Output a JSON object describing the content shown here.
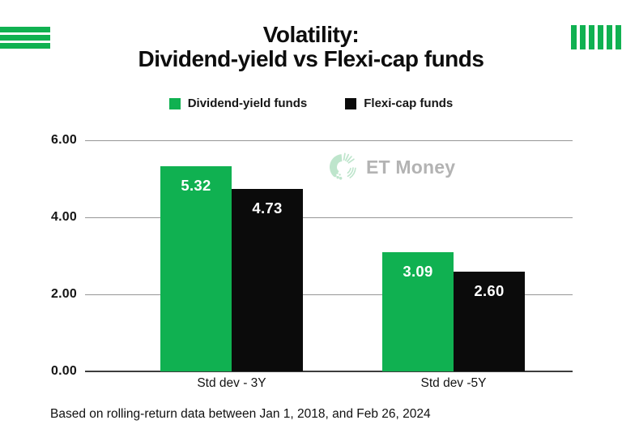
{
  "header": {
    "title_line1": "Volatility:",
    "title_line2": "Dividend-yield vs Flexi-cap funds"
  },
  "legend": {
    "items": [
      {
        "label": "Dividend-yield funds",
        "color": "#10B151"
      },
      {
        "label": "Flexi-cap funds",
        "color": "#0B0B0B"
      }
    ]
  },
  "chart_data": {
    "type": "bar",
    "title": "Volatility: Dividend-yield vs Flexi-cap funds",
    "categories": [
      "Std dev - 3Y",
      "Std dev -5Y"
    ],
    "series": [
      {
        "name": "Dividend-yield funds",
        "color": "#10B151",
        "values": [
          5.32,
          3.09
        ],
        "value_labels": [
          "5.32",
          "3.09"
        ]
      },
      {
        "name": "Flexi-cap funds",
        "color": "#0B0B0B",
        "values": [
          4.73,
          2.6
        ],
        "value_labels": [
          "4.73",
          "2.60"
        ]
      }
    ],
    "xlabel": "",
    "ylabel": "",
    "ylim": [
      0,
      6
    ],
    "y_ticks": [
      {
        "value": 0,
        "label": "0.00"
      },
      {
        "value": 2,
        "label": "2.00"
      },
      {
        "value": 4,
        "label": "4.00"
      },
      {
        "value": 6,
        "label": "6.00"
      }
    ],
    "grid": true,
    "legend_position": "top"
  },
  "watermark": {
    "text": "ET Money",
    "logo_icon": "etmoney-logo"
  },
  "footer": {
    "note": "Based on rolling-return data between Jan 1, 2018, and Feb 26, 2024"
  },
  "decorations": {
    "left": "three-horizontal-green-stripes",
    "right": "six-vertical-green-stripes"
  },
  "colors": {
    "green": "#10B151",
    "black": "#0B0B0B",
    "grid": "#969696",
    "axis": "#3D3D3D",
    "watermark_text": "#B3B3B3",
    "watermark_logo": "#BEE5CC"
  }
}
